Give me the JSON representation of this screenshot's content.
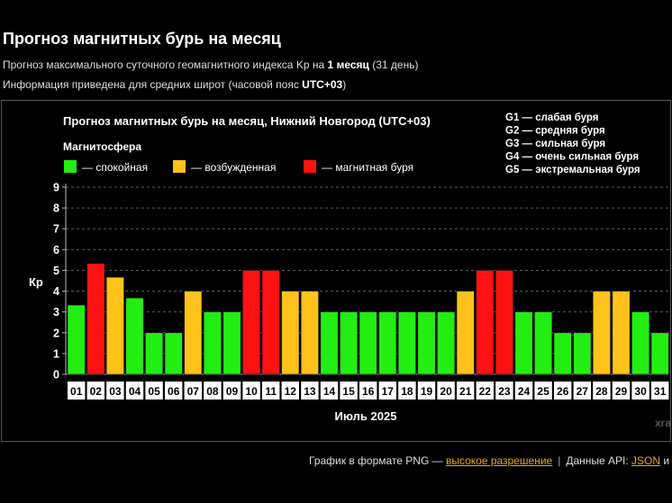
{
  "header": {
    "title": "Прогноз магнитных бурь на месяц",
    "line1_pre": "Прогноз максимального суточного геомагнитного индекса Kp на ",
    "line1_bold": "1 месяц",
    "line1_post": " (31 день)",
    "line2_pre": "Информация приведена для средних широт (часовой пояс ",
    "line2_bold": "UTC+03",
    "line2_post": ")"
  },
  "footer": {
    "png_text": "График в формате PNG — ",
    "png_link": "высокое разрешение",
    "separator": "|",
    "api_text": "Данные API: ",
    "api_link": "JSON",
    "api_tail": " и"
  },
  "colors": {
    "calm": "#22ee11",
    "excited": "#ffc21a",
    "storm": "#ff1111"
  },
  "chart_data": {
    "type": "bar",
    "title": "Прогноз магнитных бурь на месяц, Нижний Новгород (UTC+03)",
    "legend_title": "Магнитосфера",
    "legend": [
      {
        "label": "— спокойная",
        "color": "#22ee11"
      },
      {
        "label": "— возбужденная",
        "color": "#ffc21a"
      },
      {
        "label": "— магнитная буря",
        "color": "#ff1111"
      }
    ],
    "g_scale": [
      "G1 — слабая буря",
      "G2 — средняя буря",
      "G3 — сильная буря",
      "G4 — очень сильная буря",
      "G5 — экстремальная буря"
    ],
    "ylabel": "Кр",
    "xlabel": "Июль 2025",
    "ylim": [
      0,
      9
    ],
    "yticks": [
      "0",
      "1",
      "2",
      "3",
      "4",
      "5",
      "6",
      "7",
      "8",
      "9"
    ],
    "grid": true,
    "watermark": "xras",
    "categories": [
      "01",
      "02",
      "03",
      "04",
      "05",
      "06",
      "07",
      "08",
      "09",
      "10",
      "11",
      "12",
      "13",
      "14",
      "15",
      "16",
      "17",
      "18",
      "19",
      "20",
      "21",
      "22",
      "23",
      "24",
      "25",
      "26",
      "27",
      "28",
      "29",
      "30",
      "31"
    ],
    "values": [
      3.33,
      5.33,
      4.67,
      3.67,
      2,
      2,
      4,
      3,
      3,
      5,
      5,
      4,
      4,
      3,
      3,
      3,
      3,
      3,
      3,
      3,
      4,
      5,
      5,
      3,
      3,
      2,
      2,
      4,
      4,
      3,
      2
    ],
    "levels": [
      "calm",
      "storm",
      "excited",
      "calm",
      "calm",
      "calm",
      "excited",
      "calm",
      "calm",
      "storm",
      "storm",
      "excited",
      "excited",
      "calm",
      "calm",
      "calm",
      "calm",
      "calm",
      "calm",
      "calm",
      "excited",
      "storm",
      "storm",
      "calm",
      "calm",
      "calm",
      "calm",
      "excited",
      "excited",
      "calm",
      "calm"
    ]
  }
}
